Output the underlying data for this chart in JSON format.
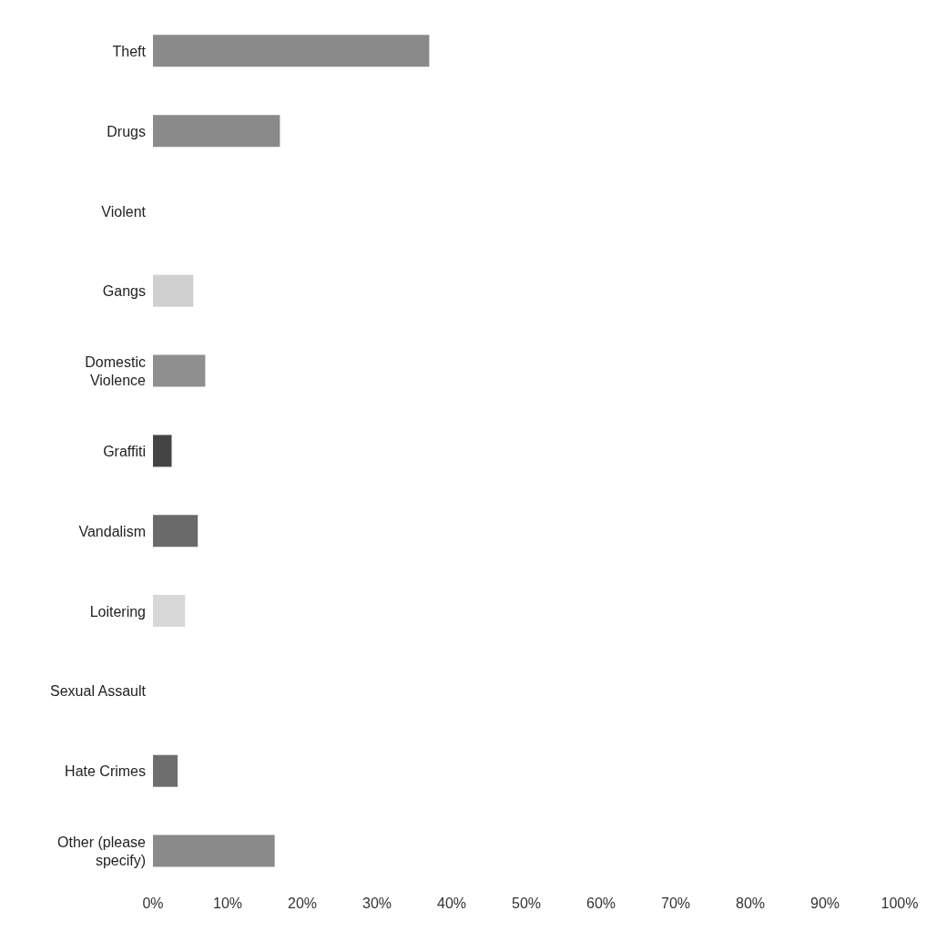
{
  "chart_data": {
    "type": "bar",
    "orientation": "horizontal",
    "categories": [
      "Theft",
      "Drugs",
      "Violent",
      "Gangs",
      "Domestic Violence",
      "Graffiti",
      "Vandalism",
      "Loitering",
      "Sexual Assault",
      "Hate Crimes",
      "Other (please specify)"
    ],
    "values": [
      37,
      17,
      0,
      5.4,
      7,
      2.5,
      6,
      4.3,
      0,
      3.3,
      16.3
    ],
    "colors": [
      "#8a8a8a",
      "#8a8a8a",
      "#8a8a8a",
      "#d0d0d0",
      "#8f8f8f",
      "#444444",
      "#6a6a6a",
      "#d8d8d8",
      "#8a8a8a",
      "#6e6e6e",
      "#8a8a8a"
    ],
    "xlim": [
      0,
      100
    ],
    "xticks": [
      {
        "value": 0,
        "label": "0%"
      },
      {
        "value": 10,
        "label": "10%"
      },
      {
        "value": 20,
        "label": "20%"
      },
      {
        "value": 30,
        "label": "30%"
      },
      {
        "value": 40,
        "label": "40%"
      },
      {
        "value": 50,
        "label": "50%"
      },
      {
        "value": 60,
        "label": "60%"
      },
      {
        "value": 70,
        "label": "70%"
      },
      {
        "value": 80,
        "label": "80%"
      },
      {
        "value": 90,
        "label": "90%"
      },
      {
        "value": 100,
        "label": "100%"
      }
    ],
    "grid": false
  }
}
